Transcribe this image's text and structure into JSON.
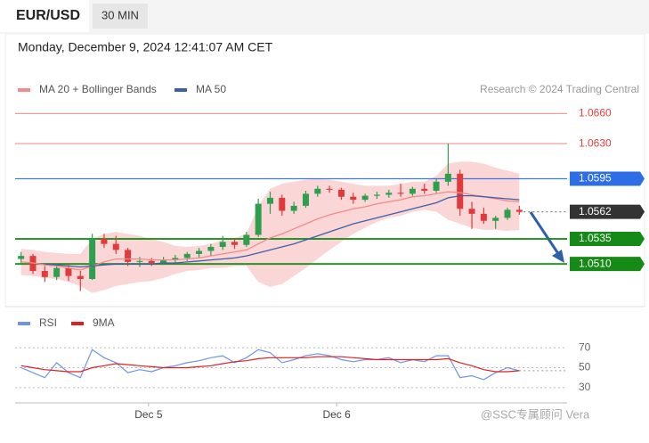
{
  "header": {
    "symbol": "EUR/USD",
    "timeframe": "30 MIN",
    "datetime": "Monday, December 9, 2024 12:41:07 AM CET"
  },
  "attribution": "Research © 2024 Trading Central",
  "watermark": "@SSC专属顾问 Vera",
  "chart_data": [
    {
      "type": "candlestick",
      "x": [
        0,
        1,
        2,
        3,
        4,
        5,
        6,
        7,
        8,
        9,
        10,
        11,
        12,
        13,
        14,
        15,
        16,
        17,
        18,
        19,
        20,
        21,
        22,
        23,
        24,
        25,
        26,
        27,
        28,
        29,
        30,
        31,
        32,
        33,
        34,
        35,
        36,
        37,
        38,
        39,
        40,
        41,
        42
      ],
      "xlim": [
        -0.5,
        42.5
      ],
      "ylim": [
        1.0471,
        1.0671
      ],
      "up_color": "#2e9e4f",
      "down_color": "#e03a3a",
      "open": [
        1.0515,
        1.0518,
        1.0503,
        1.0497,
        1.0506,
        1.0498,
        1.0495,
        1.0535,
        1.053,
        1.0524,
        1.0512,
        1.0513,
        1.0511,
        1.0514,
        1.0516,
        1.052,
        1.0523,
        1.0527,
        1.0532,
        1.0529,
        1.0539,
        1.057,
        1.0576,
        1.0563,
        1.0568,
        1.058,
        1.0585,
        1.0584,
        1.0577,
        1.0574,
        1.0578,
        1.0579,
        1.0581,
        1.058,
        1.0585,
        1.0583,
        1.0592,
        1.06,
        1.0565,
        1.056,
        1.0553,
        1.0556,
        1.0564
      ],
      "high": [
        1.0522,
        1.052,
        1.0508,
        1.051,
        1.0509,
        1.0503,
        1.054,
        1.054,
        1.0538,
        1.0526,
        1.0517,
        1.0516,
        1.0517,
        1.0519,
        1.0522,
        1.0526,
        1.053,
        1.0538,
        1.0535,
        1.0542,
        1.0575,
        1.0582,
        1.0579,
        1.0572,
        1.0583,
        1.0588,
        1.0588,
        1.0586,
        1.0581,
        1.058,
        1.0582,
        1.0584,
        1.059,
        1.0587,
        1.059,
        1.0595,
        1.063,
        1.0604,
        1.0572,
        1.0566,
        1.0558,
        1.0566,
        1.0568
      ],
      "low": [
        1.051,
        1.05,
        1.0492,
        1.0494,
        1.0493,
        1.0483,
        1.0494,
        1.0526,
        1.052,
        1.0508,
        1.0507,
        1.0508,
        1.0509,
        1.051,
        1.0513,
        1.0516,
        1.0518,
        1.0524,
        1.0525,
        1.0527,
        1.0537,
        1.056,
        1.0558,
        1.056,
        1.0566,
        1.0577,
        1.0581,
        1.0574,
        1.057,
        1.0572,
        1.0575,
        1.0576,
        1.0577,
        1.0578,
        1.058,
        1.0581,
        1.0588,
        1.0558,
        1.0545,
        1.055,
        1.0545,
        1.0554,
        1.0559
      ],
      "close": [
        1.0518,
        1.0503,
        1.0497,
        1.0506,
        1.0498,
        1.0495,
        1.0535,
        1.053,
        1.0524,
        1.0512,
        1.0513,
        1.0511,
        1.0514,
        1.0516,
        1.052,
        1.0523,
        1.0527,
        1.0532,
        1.0529,
        1.0539,
        1.057,
        1.0576,
        1.0563,
        1.0568,
        1.058,
        1.0585,
        1.0584,
        1.0577,
        1.0574,
        1.0578,
        1.0579,
        1.0581,
        1.058,
        1.0585,
        1.0583,
        1.0592,
        1.06,
        1.0565,
        1.056,
        1.0553,
        1.0556,
        1.0564,
        1.0562
      ],
      "series": [
        {
          "name": "MA 20 + Bollinger Bands",
          "color": "#f28b8b",
          "band_color": "#fbd6d6",
          "values": [
            1.0512,
            1.0511,
            1.0509,
            1.0508,
            1.0506,
            1.0504,
            1.0508,
            1.0512,
            1.0515,
            1.0515,
            1.0515,
            1.0514,
            1.0514,
            1.0514,
            1.0515,
            1.0516,
            1.0518,
            1.052,
            1.0522,
            1.0524,
            1.053,
            1.0536,
            1.054,
            1.0545,
            1.055,
            1.0555,
            1.0559,
            1.0562,
            1.0565,
            1.0567,
            1.057,
            1.0572,
            1.0574,
            1.0577,
            1.0578,
            1.058,
            1.0582,
            1.0581,
            1.0579,
            1.0577,
            1.0575,
            1.0573,
            1.0572
          ],
          "upper": [
            1.0525,
            1.0524,
            1.0522,
            1.0521,
            1.052,
            1.052,
            1.0535,
            1.054,
            1.0542,
            1.054,
            1.0538,
            1.0535,
            1.0532,
            1.0528,
            1.0527,
            1.0528,
            1.053,
            1.0534,
            1.0536,
            1.054,
            1.0568,
            1.0585,
            1.059,
            1.0592,
            1.0594,
            1.0595,
            1.0594,
            1.0592,
            1.059,
            1.0588,
            1.0588,
            1.0588,
            1.059,
            1.0592,
            1.0592,
            1.0598,
            1.061,
            1.0612,
            1.0612,
            1.061,
            1.0606,
            1.0603,
            1.06
          ],
          "lower": [
            1.0499,
            1.0498,
            1.0496,
            1.0495,
            1.0492,
            1.0488,
            1.0481,
            1.0484,
            1.0488,
            1.049,
            1.0492,
            1.0493,
            1.0496,
            1.05,
            1.0503,
            1.0504,
            1.0506,
            1.0506,
            1.0508,
            1.0508,
            1.0492,
            1.0487,
            1.049,
            1.0498,
            1.0506,
            1.0515,
            1.0524,
            1.0532,
            1.054,
            1.0546,
            1.0552,
            1.0556,
            1.0558,
            1.0562,
            1.0564,
            1.0562,
            1.0554,
            1.055,
            1.0546,
            1.0544,
            1.0544,
            1.0543,
            1.0544
          ]
        },
        {
          "name": "MA 50",
          "color": "#3d5fa8",
          "values": [
            null,
            null,
            1.051,
            1.0509,
            1.0508,
            1.0507,
            1.0508,
            1.0509,
            1.051,
            1.051,
            1.051,
            1.051,
            1.0511,
            1.0511,
            1.0512,
            1.0513,
            1.0514,
            1.0515,
            1.0516,
            1.0518,
            1.0521,
            1.0524,
            1.0527,
            1.053,
            1.0534,
            1.0538,
            1.0542,
            1.0546,
            1.055,
            1.0553,
            1.0556,
            1.0559,
            1.0562,
            1.0565,
            1.0568,
            1.0571,
            1.0576,
            1.0578,
            1.0578,
            1.0577,
            1.0576,
            1.0575,
            1.0574
          ]
        }
      ],
      "levels": [
        {
          "value": 1.066,
          "label": "1.0660",
          "color": "#e8403f",
          "boxed": false,
          "dotted": false
        },
        {
          "value": 1.063,
          "label": "1.0630",
          "color": "#e8403f",
          "boxed": false,
          "dotted": false
        },
        {
          "value": 1.0595,
          "label": "1.0595",
          "color": "#2d6ee6",
          "boxed": true,
          "dotted": false
        },
        {
          "value": 1.0562,
          "label": "1.0562",
          "color": "#333333",
          "boxed": true,
          "dotted": true
        },
        {
          "value": 1.0535,
          "label": "1.0535",
          "color": "#168a16",
          "boxed": true,
          "dotted": false
        },
        {
          "value": 1.051,
          "label": "1.0510",
          "color": "#168a16",
          "boxed": true,
          "dotted": false
        }
      ]
    },
    {
      "type": "line",
      "x": [
        0,
        1,
        2,
        3,
        4,
        5,
        6,
        7,
        8,
        9,
        10,
        11,
        12,
        13,
        14,
        15,
        16,
        17,
        18,
        19,
        20,
        21,
        22,
        23,
        24,
        25,
        26,
        27,
        28,
        29,
        30,
        31,
        32,
        33,
        34,
        35,
        36,
        37,
        38,
        39,
        40,
        41,
        42
      ],
      "xlim": [
        -0.5,
        42.5
      ],
      "xticks": [
        {
          "value": 10.75,
          "label": "Dec 5"
        },
        {
          "value": 26.6,
          "label": "Dec 6"
        }
      ],
      "ylim": [
        21,
        79
      ],
      "yticks": [
        30,
        50,
        70
      ],
      "series": [
        {
          "name": "RSI",
          "color": "#6f93e6",
          "values": [
            50,
            45,
            40,
            55,
            45,
            40,
            68,
            60,
            55,
            45,
            48,
            46,
            50,
            52,
            55,
            57,
            60,
            62,
            55,
            60,
            68,
            65,
            55,
            58,
            62,
            64,
            62,
            58,
            56,
            58,
            58,
            60,
            55,
            58,
            56,
            62,
            62,
            40,
            42,
            38,
            45,
            50,
            47
          ]
        },
        {
          "name": "9MA",
          "color": "#e02020",
          "values": [
            52,
            50,
            48,
            47,
            46,
            46,
            50,
            52,
            54,
            53,
            52,
            51,
            50,
            50,
            50,
            51,
            52,
            54,
            56,
            57,
            59,
            60,
            60,
            60,
            60,
            61,
            61,
            61,
            60,
            59,
            58,
            58,
            58,
            58,
            58,
            58,
            59,
            55,
            52,
            48,
            46,
            46,
            47
          ]
        }
      ]
    }
  ]
}
